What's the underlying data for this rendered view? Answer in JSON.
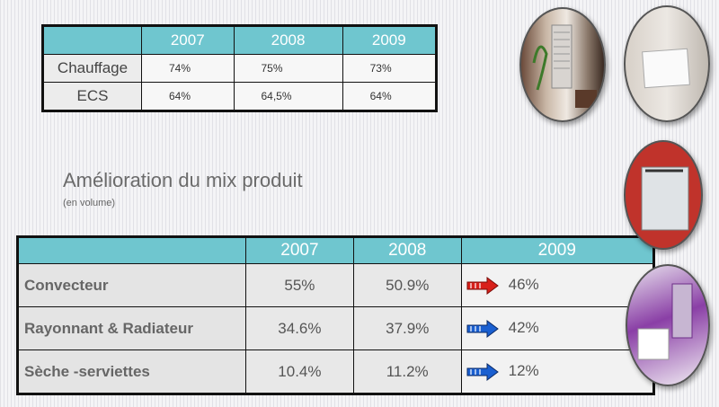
{
  "top_table": {
    "columns": [
      "2007",
      "2008",
      "2009"
    ],
    "rows": [
      {
        "label": "Chauffage",
        "values": [
          "74%",
          "75%",
          "73%"
        ]
      },
      {
        "label": "ECS",
        "values": [
          "64%",
          "64,5%",
          "64%"
        ]
      }
    ]
  },
  "heading": "Amélioration du mix produit",
  "subheading": "(en volume)",
  "bottom_table": {
    "columns": [
      "2007",
      "2008",
      "2009"
    ],
    "rows": [
      {
        "label": "Convecteur",
        "values": [
          "55%",
          "50.9%",
          "46%"
        ],
        "trend": "down"
      },
      {
        "label": "Rayonnant & Radiateur",
        "values": [
          "34.6%",
          "37.9%",
          "42%"
        ],
        "trend": "up"
      },
      {
        "label": "Sèche -serviettes",
        "values": [
          "10.4%",
          "11.2%",
          "12%"
        ],
        "trend": "up"
      }
    ]
  },
  "trend_colors": {
    "down": "#d8201a",
    "up": "#1a5fd0"
  },
  "header_color": "#6fc6cf",
  "images": [
    {
      "name": "towel-radiator-bathroom-photo"
    },
    {
      "name": "white-panel-heater-photo"
    },
    {
      "name": "glass-panel-heater-red-wall-photo"
    },
    {
      "name": "purple-bathroom-radiator-photo"
    }
  ]
}
